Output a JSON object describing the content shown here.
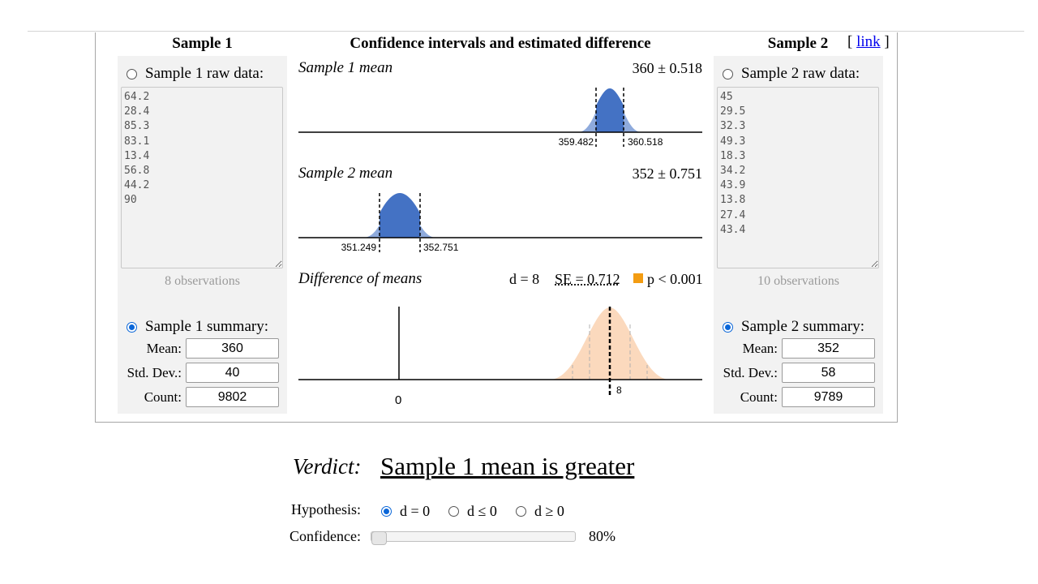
{
  "header": {
    "sample1_title": "Sample 1",
    "center_title": "Confidence intervals and estimated difference",
    "sample2_title": "Sample 2",
    "link_open": "[",
    "link_text": "link",
    "link_close": "]"
  },
  "sample1": {
    "raw_label": "Sample 1 raw data:",
    "raw_data": "64.2\n28.4\n85.3\n83.1\n13.4\n56.8\n44.2\n90",
    "observations": "8 observations",
    "summary_label": "Sample 1 summary:",
    "mean_label": "Mean:",
    "mean": "360",
    "sd_label": "Std. Dev.:",
    "sd": "40",
    "count_label": "Count:",
    "count": "9802",
    "mode": "summary"
  },
  "sample2": {
    "raw_label": "Sample 2 raw data:",
    "raw_data": "45\n29.5\n32.3\n49.3\n18.3\n34.2\n43.9\n13.8\n27.4\n43.4",
    "observations": "10 observations",
    "summary_label": "Sample 2 summary:",
    "mean_label": "Mean:",
    "mean": "352",
    "sd_label": "Std. Dev.:",
    "sd": "58",
    "count_label": "Count:",
    "count": "9789",
    "mode": "summary"
  },
  "plots": {
    "mean1": {
      "title": "Sample 1 mean",
      "value": "360 ± 0.518",
      "lower_label": "359.482",
      "upper_label": "360.518"
    },
    "mean2": {
      "title": "Sample 2 mean",
      "value": "352 ± 0.751",
      "lower_label": "351.249",
      "upper_label": "352.751"
    },
    "diff": {
      "title": "Difference of means",
      "d_text": "d = 8",
      "se_text": "SE = 0.712",
      "p_text": "p < 0.001",
      "zero_label": "0",
      "d_label": "8"
    }
  },
  "colors": {
    "mean_fill_dark": "#4472c4",
    "mean_fill_light": "#8eaadc",
    "diff_fill": "#fbd9bd",
    "p_marker": "#f39c12",
    "panel_bg": "#f2f2f2",
    "radio_selected": "#0a66d8"
  },
  "verdict": {
    "label": "Verdict:",
    "text": "Sample 1 mean is greater"
  },
  "hypothesis": {
    "label": "Hypothesis:",
    "options": [
      "d = 0",
      "d ≤ 0",
      "d ≥ 0"
    ],
    "selected": "d = 0"
  },
  "confidence": {
    "label": "Confidence:",
    "value_text": "80%",
    "slider_fraction": 0.0
  }
}
